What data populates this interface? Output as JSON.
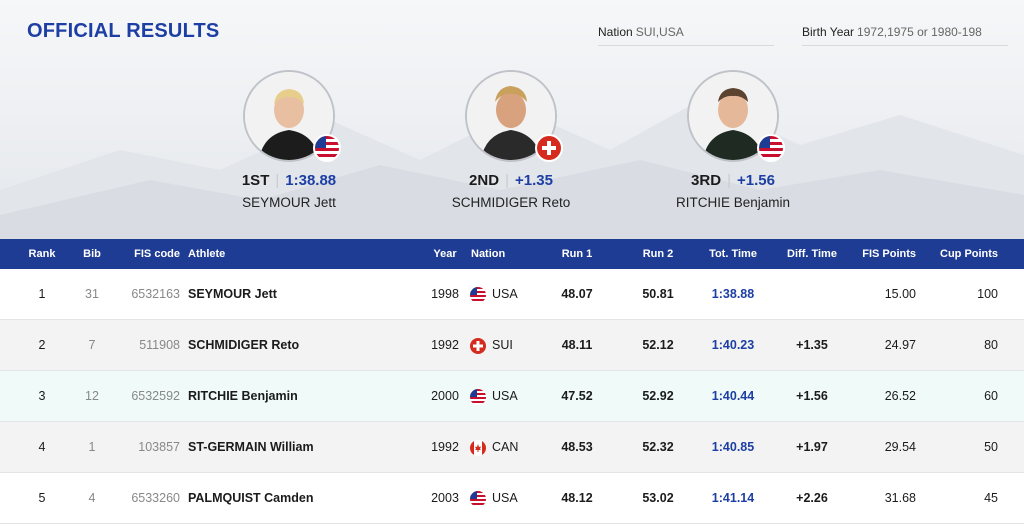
{
  "header": {
    "title": "OFFICIAL RESULTS",
    "nation_filter": {
      "label": "Nation",
      "value": "SUI,USA"
    },
    "birth_filter": {
      "label": "Birth Year",
      "value": "1972,1975 or 1980-198"
    }
  },
  "podium": [
    {
      "place": "1ST",
      "time": "1:38.88",
      "name": "SEYMOUR Jett",
      "flag": "usa"
    },
    {
      "place": "2ND",
      "time": "+1.35",
      "name": "SCHMIDIGER Reto",
      "flag": "sui"
    },
    {
      "place": "3RD",
      "time": "+1.56",
      "name": "RITCHIE Benjamin",
      "flag": "usa"
    }
  ],
  "table": {
    "headers": {
      "rank": "Rank",
      "bib": "Bib",
      "fis_code": "FIS code",
      "athlete": "Athlete",
      "year": "Year",
      "nation": "Nation",
      "run1": "Run 1",
      "run2": "Run 2",
      "total": "Tot. Time",
      "diff": "Diff. Time",
      "fis_points": "FIS Points",
      "cup_points": "Cup Points"
    },
    "rows": [
      {
        "rank": "1",
        "bib": "31",
        "fis_code": "6532163",
        "athlete": "SEYMOUR Jett",
        "year": "1998",
        "flag": "usa",
        "nation": "USA",
        "run1": "48.07",
        "run2": "50.81",
        "total": "1:38.88",
        "diff": "",
        "fis_points": "15.00",
        "cup_points": "100"
      },
      {
        "rank": "2",
        "bib": "7",
        "fis_code": "511908",
        "athlete": "SCHMIDIGER Reto",
        "year": "1992",
        "flag": "sui",
        "nation": "SUI",
        "run1": "48.11",
        "run2": "52.12",
        "total": "1:40.23",
        "diff": "+1.35",
        "fis_points": "24.97",
        "cup_points": "80"
      },
      {
        "rank": "3",
        "bib": "12",
        "fis_code": "6532592",
        "athlete": "RITCHIE Benjamin",
        "year": "2000",
        "flag": "usa",
        "nation": "USA",
        "run1": "47.52",
        "run2": "52.92",
        "total": "1:40.44",
        "diff": "+1.56",
        "fis_points": "26.52",
        "cup_points": "60"
      },
      {
        "rank": "4",
        "bib": "1",
        "fis_code": "103857",
        "athlete": "ST-GERMAIN William",
        "year": "1992",
        "flag": "can",
        "nation": "CAN",
        "run1": "48.53",
        "run2": "52.32",
        "total": "1:40.85",
        "diff": "+1.97",
        "fis_points": "29.54",
        "cup_points": "50"
      },
      {
        "rank": "5",
        "bib": "4",
        "fis_code": "6533260",
        "athlete": "PALMQUIST Camden",
        "year": "2003",
        "flag": "usa",
        "nation": "USA",
        "run1": "48.12",
        "run2": "53.02",
        "total": "1:41.14",
        "diff": "+2.26",
        "fis_points": "31.68",
        "cup_points": "45"
      }
    ]
  },
  "colors": {
    "accent": "#1d3fa4",
    "header_bg": "#1e3c93",
    "highlight_row": "#effaf9"
  }
}
